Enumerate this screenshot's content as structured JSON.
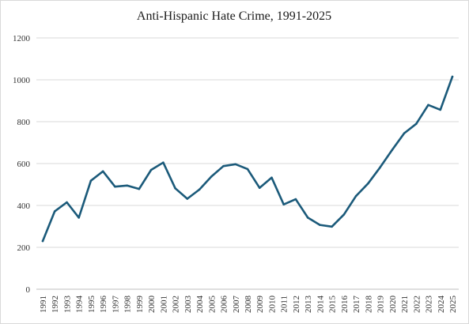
{
  "chart_data": {
    "type": "line",
    "title": "Anti-Hispanic Hate Crime, 1991-2025",
    "xlabel": "",
    "ylabel": "",
    "ylim": [
      0,
      1200
    ],
    "yticks": [
      0,
      200,
      400,
      600,
      800,
      1000,
      1200
    ],
    "grid": true,
    "legend": "none",
    "colors": {
      "line": "#1b5a7a",
      "grid": "#d9d9d9"
    },
    "x": [
      "1991",
      "1992",
      "1993",
      "1994",
      "1995",
      "1996",
      "1997",
      "1998",
      "1999",
      "2000",
      "2001",
      "2002",
      "2003",
      "2004",
      "2005",
      "2006",
      "2007",
      "2008",
      "2009",
      "2010",
      "2011",
      "2012",
      "2013",
      "2014",
      "2015",
      "2016",
      "2017",
      "2018",
      "2019",
      "2020",
      "2021",
      "2022",
      "2023",
      "2024",
      "2025"
    ],
    "series": [
      {
        "values": [
          230,
          372,
          415,
          342,
          518,
          563,
          490,
          495,
          479,
          570,
          605,
          482,
          432,
          476,
          538,
          588,
          597,
          574,
          484,
          533,
          405,
          430,
          342,
          307,
          299,
          357,
          445,
          505,
          582,
          665,
          745,
          790,
          880,
          857,
          1015
        ]
      }
    ]
  }
}
